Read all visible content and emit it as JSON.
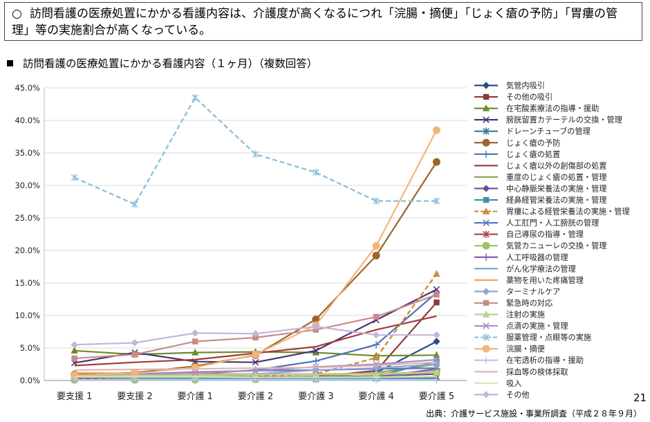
{
  "callout": {
    "bullet": "○",
    "text": "訪問看護の医療処置にかかる看護内容は、介護度が高くなるにつれ「浣腸・摘便」「じょく瘡の予防」「胃瘻の管理」等の実施割合が高くなっている。"
  },
  "subtitle": "訪問看護の医療処置にかかる看護内容（１ヶ月）（複数回答）",
  "page_number": "21",
  "source": "出典：介護サービス施設・事業所調査（平成２８年９月）",
  "chart_data": {
    "type": "line",
    "title": "訪問看護の医療処置にかかる看護内容（１ヶ月）（複数回答）",
    "categories": [
      "要支援 1",
      "要支援 2",
      "要介護 1",
      "要介護 2",
      "要介護 3",
      "要介護 4",
      "要介護 5"
    ],
    "y_ticks": [
      "0.0%",
      "5.0%",
      "10.0%",
      "15.0%",
      "20.0%",
      "25.0%",
      "30.0%",
      "35.0%",
      "40.0%",
      "45.0%"
    ],
    "ylim": [
      0,
      45
    ],
    "unit": "%",
    "grid": "horizontal",
    "legend_position": "right",
    "series": [
      {
        "name": "気管内吸引",
        "color": "#2E4A87",
        "marker": "diamond",
        "dash": false,
        "values": [
          0.3,
          0.5,
          0.4,
          0.5,
          0.6,
          1.2,
          6.0
        ]
      },
      {
        "name": "その他の吸引",
        "color": "#8B3A3A",
        "marker": "square",
        "dash": false,
        "values": [
          0.2,
          0.3,
          0.3,
          0.4,
          0.6,
          1.5,
          12.0
        ]
      },
      {
        "name": "在宅酸素療法の指導・援助",
        "color": "#6E8C2E",
        "marker": "triangle",
        "dash": false,
        "values": [
          4.6,
          4.0,
          4.3,
          4.4,
          4.3,
          3.8,
          3.9
        ]
      },
      {
        "name": "膀胱留置カテーテルの交換・管理",
        "color": "#4A3475",
        "marker": "x",
        "dash": false,
        "values": [
          2.7,
          4.3,
          2.9,
          2.8,
          4.6,
          9.3,
          14.0
        ]
      },
      {
        "name": "ドレーンチューブの管理",
        "color": "#2F7F8F",
        "marker": "star",
        "dash": false,
        "values": [
          0.2,
          0.2,
          0.3,
          0.2,
          0.2,
          0.3,
          0.4
        ]
      },
      {
        "name": "じょく瘡の予防",
        "color": "#9B6528",
        "marker": "circle",
        "dash": false,
        "values": [
          0.9,
          1.2,
          2.2,
          3.9,
          9.4,
          19.2,
          33.6
        ]
      },
      {
        "name": "じょく瘡の処置",
        "color": "#4A6FB8",
        "marker": "plus",
        "dash": false,
        "values": [
          0.6,
          0.8,
          1.0,
          1.6,
          3.0,
          5.5,
          13.5
        ]
      },
      {
        "name": "じょく瘡以外の創傷部の処置",
        "color": "#A33B36",
        "marker": "none",
        "dash": false,
        "values": [
          2.3,
          2.8,
          3.2,
          4.2,
          5.2,
          7.8,
          9.9
        ]
      },
      {
        "name": "重度のじょく瘡の処置・管理",
        "color": "#89A84A",
        "marker": "none",
        "dash": false,
        "values": [
          0.1,
          0.2,
          0.2,
          0.3,
          0.5,
          1.2,
          2.5
        ]
      },
      {
        "name": "中心静脈栄養法の実施・管理",
        "color": "#6B4F9A",
        "marker": "diamond",
        "dash": false,
        "values": [
          0.3,
          0.4,
          0.4,
          0.5,
          0.5,
          0.7,
          1.0
        ]
      },
      {
        "name": "経鼻経管栄養法の実施・管理",
        "color": "#3F8FA8",
        "marker": "square",
        "dash": false,
        "values": [
          0.1,
          0.1,
          0.2,
          0.2,
          0.3,
          0.7,
          2.9
        ]
      },
      {
        "name": "胃瘻による経管栄養法の実施・管理",
        "color": "#D08B3A",
        "marker": "triangle",
        "dash": true,
        "values": [
          0.2,
          0.3,
          0.4,
          0.6,
          1.0,
          3.5,
          16.4
        ]
      },
      {
        "name": "人工肛門・人工膀胱の管理",
        "color": "#5776C6",
        "marker": "x",
        "dash": false,
        "values": [
          0.8,
          1.0,
          1.3,
          1.5,
          1.6,
          1.8,
          1.9
        ]
      },
      {
        "name": "自己導尿の指導・管理",
        "color": "#B04A46",
        "marker": "star",
        "dash": false,
        "values": [
          0.4,
          0.5,
          0.6,
          0.6,
          0.5,
          0.5,
          0.6
        ]
      },
      {
        "name": "気管カニューレの交換・管理",
        "color": "#9CC26A",
        "marker": "circle",
        "dash": false,
        "values": [
          0.1,
          0.1,
          0.1,
          0.2,
          0.3,
          0.6,
          1.5
        ]
      },
      {
        "name": "人工呼吸器の管理",
        "color": "#7E5EAE",
        "marker": "plus",
        "dash": false,
        "values": [
          0.1,
          0.1,
          0.1,
          0.2,
          0.3,
          0.5,
          1.8
        ]
      },
      {
        "name": "がん化学療法の管理",
        "color": "#5EAFC6",
        "marker": "none",
        "dash": false,
        "values": [
          0.5,
          0.4,
          0.4,
          0.3,
          0.3,
          0.2,
          0.2
        ]
      },
      {
        "name": "薬物を用いた疼痛管理",
        "color": "#F0A55A",
        "marker": "none",
        "dash": false,
        "values": [
          1.2,
          1.1,
          1.0,
          1.0,
          1.0,
          1.1,
          1.3
        ]
      },
      {
        "name": "ターミナルケア",
        "color": "#8FA3D8",
        "marker": "diamond",
        "dash": false,
        "values": [
          0.6,
          0.6,
          0.8,
          1.0,
          1.6,
          1.9,
          2.5
        ]
      },
      {
        "name": "緊急時の対応",
        "color": "#C98A8A",
        "marker": "square",
        "dash": false,
        "values": [
          3.4,
          4.0,
          6.0,
          6.6,
          7.8,
          9.8,
          13.2
        ]
      },
      {
        "name": "注射の実施",
        "color": "#B8D18E",
        "marker": "triangle",
        "dash": false,
        "values": [
          0.7,
          0.8,
          0.8,
          0.9,
          0.9,
          1.0,
          1.2
        ]
      },
      {
        "name": "点滴の実施・管理",
        "color": "#A58FC7",
        "marker": "x",
        "dash": false,
        "values": [
          0.8,
          1.0,
          1.2,
          1.5,
          2.1,
          2.5,
          3.2
        ]
      },
      {
        "name": "服薬管理・点眼等の実施",
        "color": "#8FC1D9",
        "marker": "star",
        "dash": true,
        "values": [
          31.2,
          27.1,
          43.5,
          34.8,
          32.0,
          27.6,
          27.6
        ]
      },
      {
        "name": "浣腸・摘便",
        "color": "#F3B47A",
        "marker": "circle",
        "dash": false,
        "values": [
          0.8,
          1.1,
          2.0,
          4.0,
          8.5,
          20.7,
          38.5
        ]
      },
      {
        "name": "在宅透析の指導・援助",
        "color": "#B8C5E6",
        "marker": "plus",
        "dash": false,
        "values": [
          0.1,
          0.1,
          0.1,
          0.1,
          0.1,
          0.1,
          0.1
        ]
      },
      {
        "name": "採血等の検体採取",
        "color": "#E2B5B5",
        "marker": "none",
        "dash": false,
        "values": [
          1.6,
          1.7,
          1.8,
          1.9,
          2.0,
          2.3,
          2.8
        ]
      },
      {
        "name": "吸入",
        "color": "#D4E4B8",
        "marker": "none",
        "dash": false,
        "values": [
          0.6,
          0.6,
          0.6,
          0.5,
          0.5,
          0.5,
          0.6
        ]
      },
      {
        "name": "その他",
        "color": "#C3B5DB",
        "marker": "diamond",
        "dash": false,
        "values": [
          5.5,
          5.8,
          7.3,
          7.2,
          8.3,
          7.0,
          7.0
        ]
      }
    ]
  }
}
